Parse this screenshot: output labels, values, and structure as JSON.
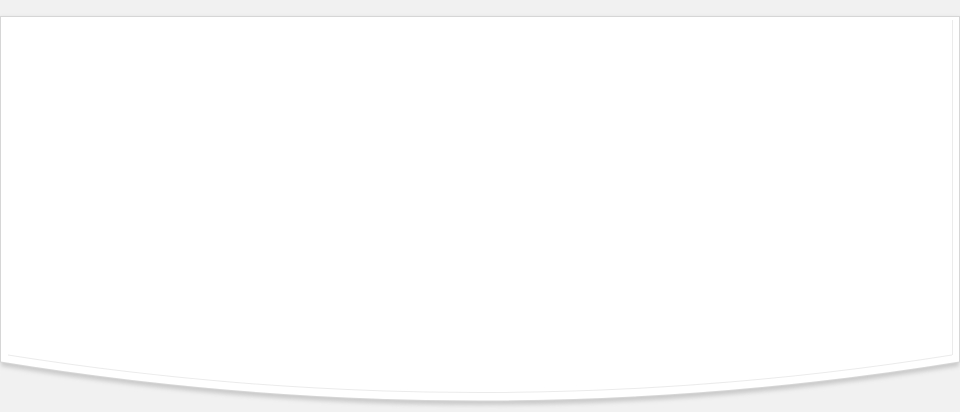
{
  "colors": {
    "page_background": "#f1f1f1",
    "card_fill": "#ffffff",
    "card_border": "#d6d6d6",
    "inner_edge": "#ebebeb",
    "shadow": "#9a9a9a"
  }
}
